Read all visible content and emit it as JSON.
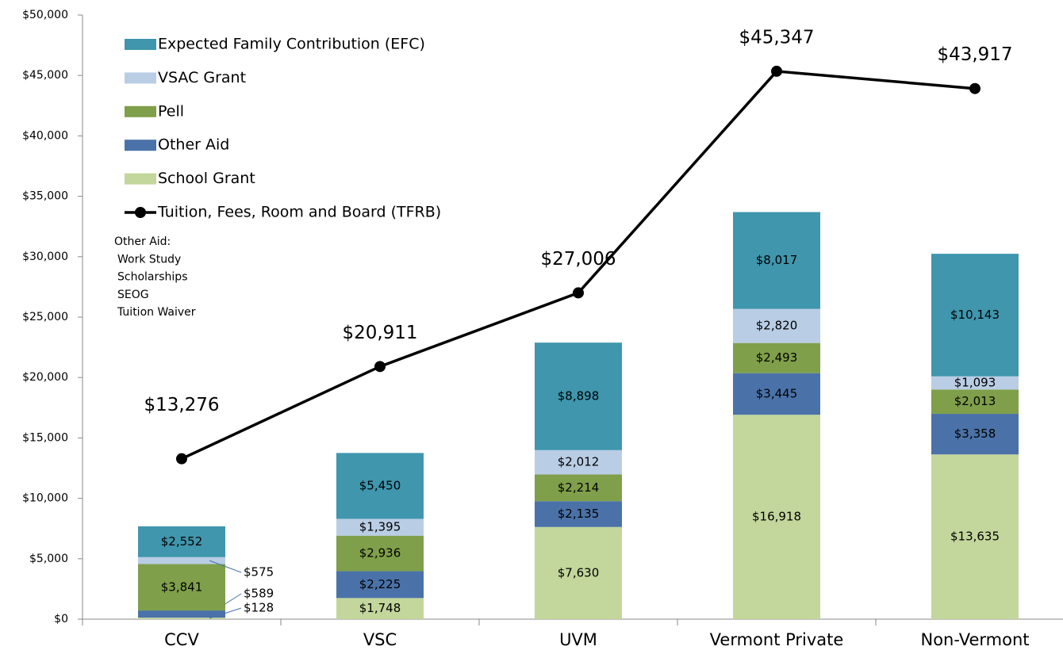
{
  "chart_data": {
    "type": "stacked-bar-line",
    "categories": [
      "CCV",
      "VSC",
      "UVM",
      "Vermont Private",
      "Non-Vermont"
    ],
    "series": [
      {
        "name": "Expected Family Contribution (EFC)",
        "color": "#3f96ad",
        "values": [
          2552,
          5450,
          8898,
          8017,
          10143
        ],
        "value_labels": [
          "$2,552",
          "$5,450",
          "$8,898",
          "$8,017",
          "$10,143"
        ]
      },
      {
        "name": "VSAC Grant",
        "color": "#b9cde5",
        "values": [
          575,
          1395,
          2012,
          2820,
          1093
        ],
        "value_labels": [
          "$575",
          "$1,395",
          "$2,012",
          "$2,820",
          "$1,093"
        ]
      },
      {
        "name": "Pell",
        "color": "#7f9f4a",
        "values": [
          3841,
          2936,
          2214,
          2493,
          2013
        ],
        "value_labels": [
          "$3,841",
          "$2,936",
          "$2,214",
          "$2,493",
          "$2,013"
        ]
      },
      {
        "name": "Other Aid",
        "color": "#4a72a8",
        "values": [
          589,
          2225,
          2135,
          3445,
          3358
        ],
        "value_labels": [
          "$589",
          "$2,225",
          "$2,135",
          "$3,445",
          "$3,358"
        ]
      },
      {
        "name": "School Grant",
        "color": "#c3d69b",
        "values": [
          128,
          1748,
          7630,
          16918,
          13635
        ],
        "value_labels": [
          "$128",
          "$1,748",
          "$7,630",
          "$16,918",
          "$13,635"
        ]
      }
    ],
    "line": {
      "name": "Tuition, Fees, Room and Board (TFRB)",
      "color": "#000000",
      "values": [
        13276,
        20911,
        27006,
        45347,
        43917
      ],
      "value_labels": [
        "$13,276",
        "$20,911",
        "$27,006",
        "$45,347",
        "$43,917"
      ]
    },
    "annotation": [
      "Other Aid:",
      "Work Study",
      "Scholarships",
      "SEOG",
      "Tuition Waiver"
    ],
    "ylim": [
      0,
      50000
    ],
    "yticks": [
      {
        "value": 0,
        "label": "$0"
      },
      {
        "value": 5000,
        "label": "$5,000"
      },
      {
        "value": 10000,
        "label": "$10,000"
      },
      {
        "value": 15000,
        "label": "$15,000"
      },
      {
        "value": 20000,
        "label": "$20,000"
      },
      {
        "value": 25000,
        "label": "$25,000"
      },
      {
        "value": 30000,
        "label": "$30,000"
      },
      {
        "value": 35000,
        "label": "$35,000"
      },
      {
        "value": 40000,
        "label": "$40,000"
      },
      {
        "value": 45000,
        "label": "$45,000"
      },
      {
        "value": 50000,
        "label": "$50,000"
      }
    ],
    "legend": "upper left"
  }
}
